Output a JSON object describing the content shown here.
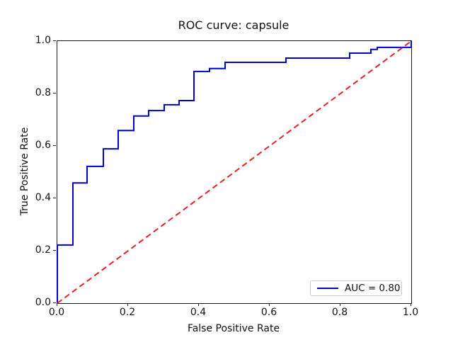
{
  "chart_data": {
    "type": "line",
    "subtype": "roc-step-curve",
    "title": "ROC curve: capsule",
    "xlabel": "False Positive Rate",
    "ylabel": "True Positive Rate",
    "xlim": [
      0.0,
      1.0
    ],
    "ylim": [
      0.0,
      1.0
    ],
    "x_ticks": [
      "0.0",
      "0.2",
      "0.4",
      "0.6",
      "0.8",
      "1.0"
    ],
    "y_ticks": [
      "0.0",
      "0.2",
      "0.4",
      "0.6",
      "0.8",
      "1.0"
    ],
    "grid": false,
    "auc": 0.8,
    "colors": {
      "roc_line": "#0000cd",
      "chance_line": "#e62222",
      "spine": "#1a1a1a",
      "text": "#111111",
      "legend_border": "#cccccc"
    },
    "legend": {
      "position": "lower right",
      "entries": [
        {
          "label": "AUC = 0.80",
          "color": "#0000cd",
          "style": "solid"
        }
      ]
    },
    "series": [
      {
        "name": "ROC curve",
        "style": "solid",
        "color": "#0000cd",
        "points": [
          [
            0.0,
            0.0
          ],
          [
            0.0,
            0.222
          ],
          [
            0.044,
            0.222
          ],
          [
            0.044,
            0.459
          ],
          [
            0.084,
            0.459
          ],
          [
            0.084,
            0.522
          ],
          [
            0.13,
            0.522
          ],
          [
            0.13,
            0.589
          ],
          [
            0.172,
            0.589
          ],
          [
            0.172,
            0.659
          ],
          [
            0.216,
            0.659
          ],
          [
            0.216,
            0.714
          ],
          [
            0.258,
            0.714
          ],
          [
            0.258,
            0.735
          ],
          [
            0.302,
            0.735
          ],
          [
            0.302,
            0.757
          ],
          [
            0.344,
            0.757
          ],
          [
            0.344,
            0.773
          ],
          [
            0.386,
            0.773
          ],
          [
            0.386,
            0.884
          ],
          [
            0.43,
            0.884
          ],
          [
            0.43,
            0.895
          ],
          [
            0.474,
            0.895
          ],
          [
            0.474,
            0.919
          ],
          [
            0.646,
            0.919
          ],
          [
            0.646,
            0.935
          ],
          [
            0.826,
            0.935
          ],
          [
            0.826,
            0.954
          ],
          [
            0.886,
            0.954
          ],
          [
            0.886,
            0.968
          ],
          [
            0.904,
            0.968
          ],
          [
            0.904,
            0.976
          ],
          [
            1.0,
            0.976
          ],
          [
            1.0,
            1.0
          ]
        ]
      },
      {
        "name": "chance diagonal",
        "style": "dashed",
        "color": "#e62222",
        "points": [
          [
            0.0,
            0.0
          ],
          [
            1.0,
            1.0
          ]
        ]
      }
    ]
  }
}
